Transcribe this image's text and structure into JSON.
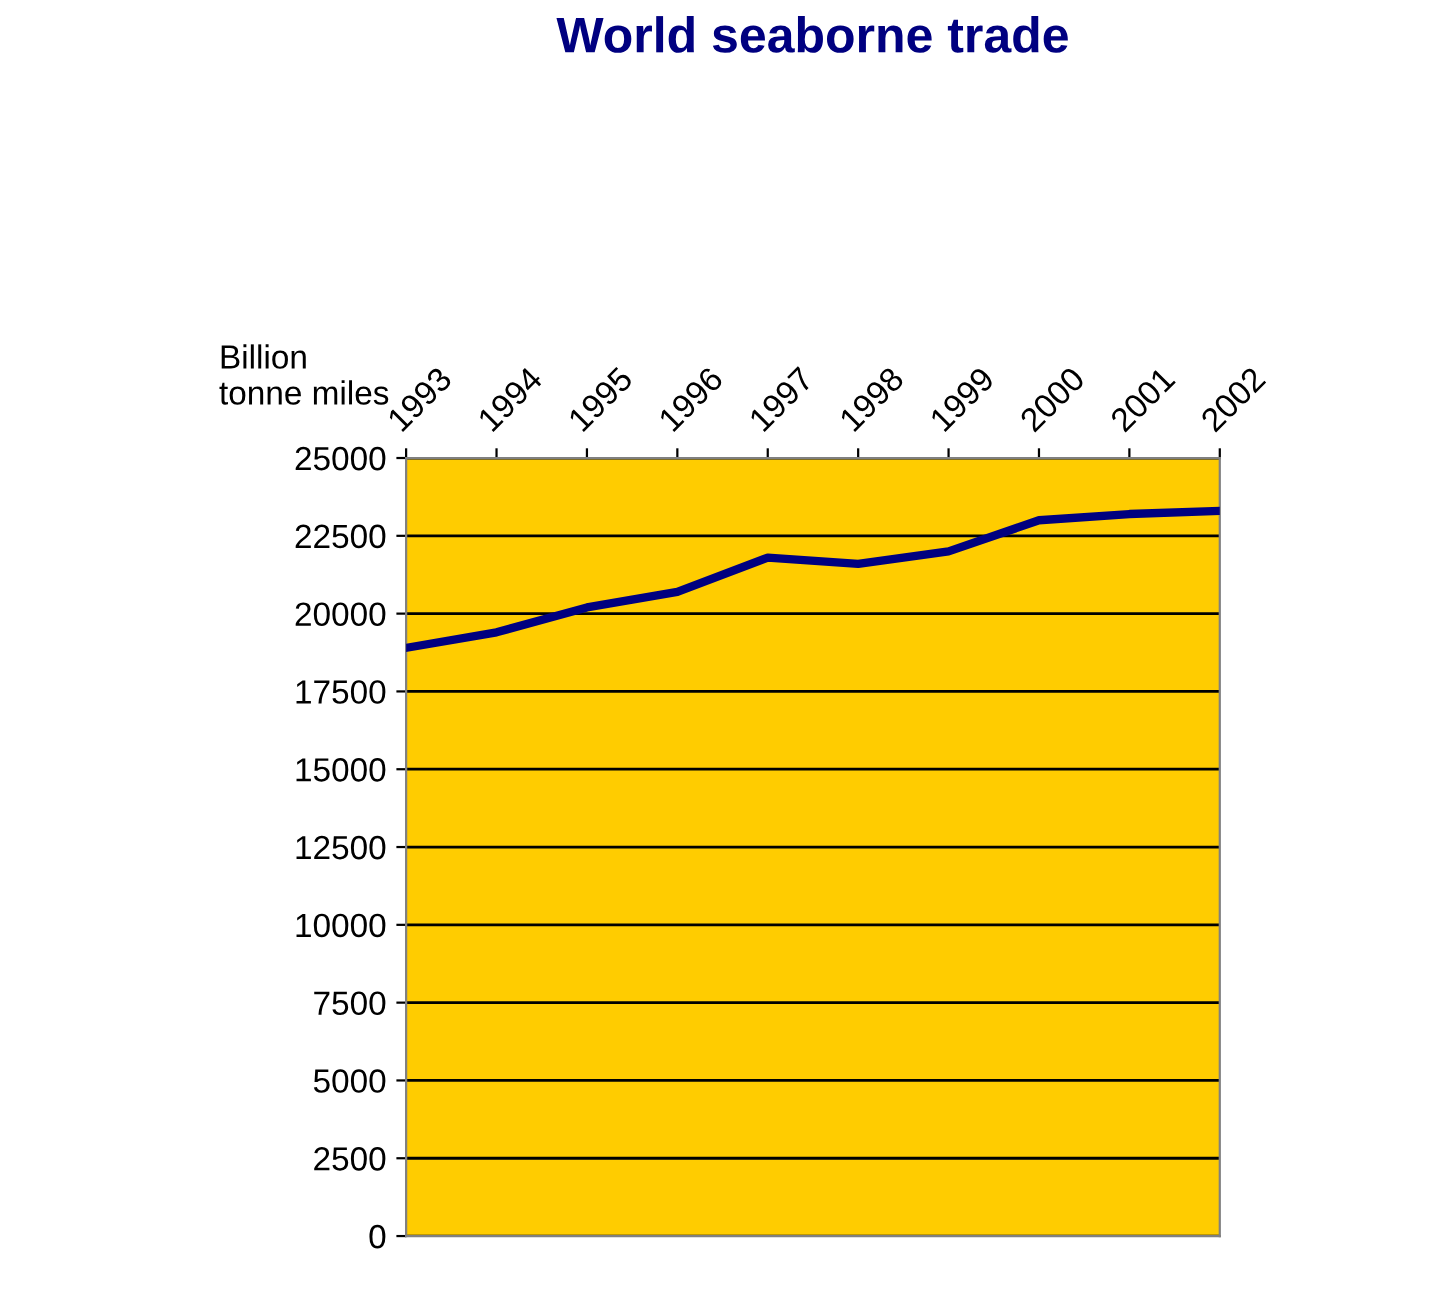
{
  "chart_data": {
    "type": "line",
    "title": "World seaborne trade",
    "ylabel": "Billion\ntonne miles",
    "categories": [
      "1993",
      "1994",
      "1995",
      "1996",
      "1997",
      "1998",
      "1999",
      "2000",
      "2001",
      "2002"
    ],
    "series": [
      {
        "color": "#000080",
        "values": [
          18900,
          19400,
          20200,
          20700,
          21800,
          21600,
          22000,
          23000,
          23200,
          23300
        ]
      }
    ],
    "ylim": [
      0,
      25000
    ],
    "yticks": [
      0,
      2500,
      5000,
      7500,
      10000,
      12500,
      15000,
      17500,
      20000,
      22500,
      25000
    ],
    "grid": "y",
    "legend": false,
    "marker": "none",
    "line_style": "solid"
  }
}
